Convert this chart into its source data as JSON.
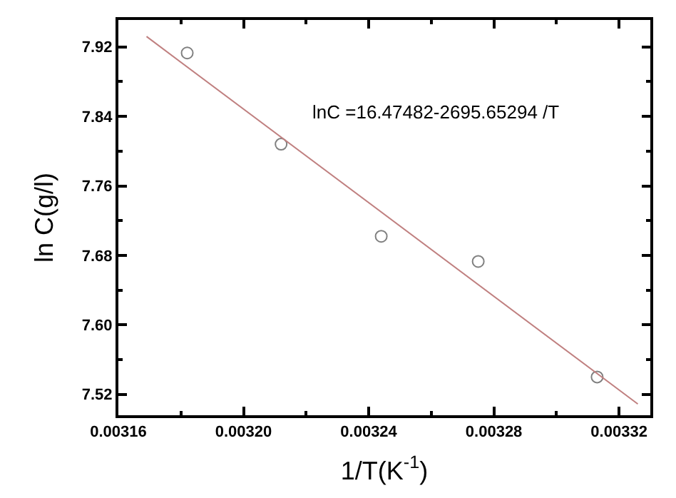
{
  "chart_data": {
    "type": "scatter",
    "xlabel": "1/T(K$^{-1}$)",
    "ylabel": "ln C(g/l)",
    "annotations": [
      "lnC =16.47482-2695.65294 /T"
    ],
    "xlim": [
      0.00316,
      0.00333
    ],
    "ylim": [
      7.496,
      7.951
    ],
    "xticks": [
      {
        "value": 0.00316,
        "label": "0.00316"
      },
      {
        "value": 0.0032,
        "label": "0.00320"
      },
      {
        "value": 0.00324,
        "label": "0.00324"
      },
      {
        "value": 0.00328,
        "label": "0.00328"
      },
      {
        "value": 0.00332,
        "label": "0.00332"
      }
    ],
    "yticks": [
      {
        "value": 7.52,
        "label": "7.52"
      },
      {
        "value": 7.6,
        "label": "7.60"
      },
      {
        "value": 7.68,
        "label": "7.68"
      },
      {
        "value": 7.76,
        "label": "7.76"
      },
      {
        "value": 7.84,
        "label": "7.84"
      },
      {
        "value": 7.92,
        "label": "7.92"
      }
    ],
    "series": [
      {
        "marker": "circle",
        "color": "#808080",
        "x": [
          0.003182,
          0.003212,
          0.003244,
          0.003275,
          0.003313
        ],
        "values": [
          7.913,
          7.808,
          7.702,
          7.673,
          7.54
        ]
      },
      {
        "type": "line",
        "color": "#c08080",
        "x": [
          0.003169,
          0.003326
        ],
        "values": [
          7.932,
          7.509
        ]
      }
    ]
  }
}
